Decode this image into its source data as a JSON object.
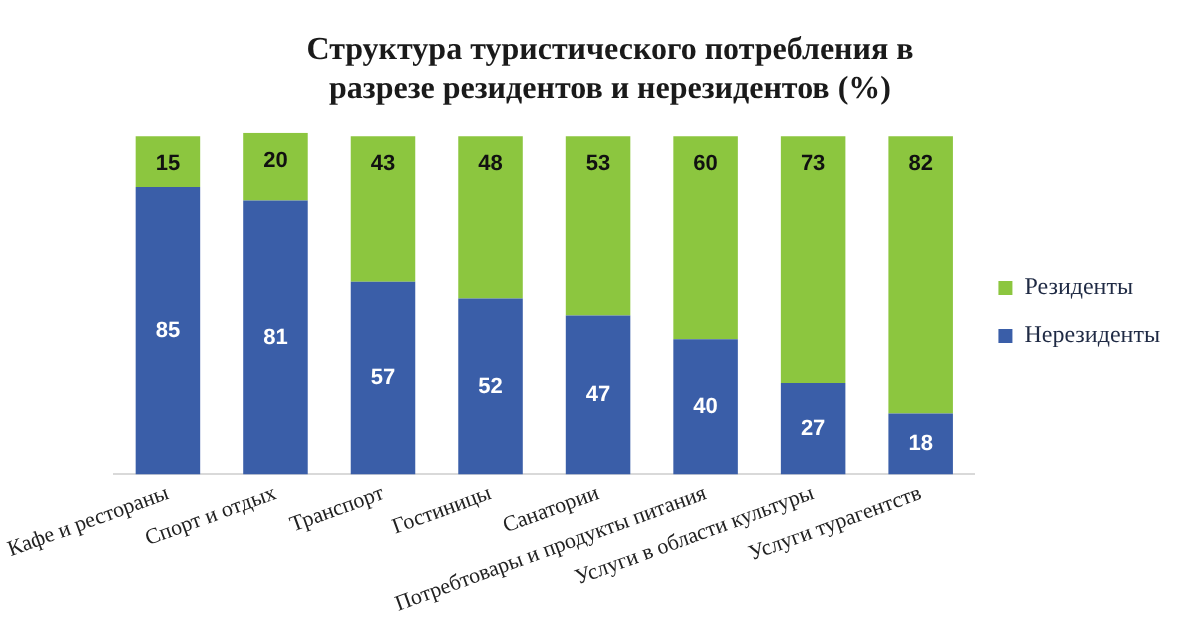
{
  "chart_data": {
    "type": "bar",
    "title": "Структура туристического потребления в разрезе резидентов и нерезидентов (%)",
    "categories": [
      "Кафе и рестораны",
      "Спорт и отдых",
      "Транспорт",
      "Гостиницы",
      "Санатории",
      "Потребтовары и продукты питания",
      "Услуги в области культуры",
      "Услуги турагентств"
    ],
    "series": [
      {
        "name": "Нерезиденты",
        "color": "#3a5ea8",
        "values": [
          85,
          81,
          57,
          52,
          47,
          40,
          27,
          18
        ]
      },
      {
        "name": "Резиденты",
        "color": "#8cc63f",
        "values": [
          15,
          20,
          43,
          48,
          53,
          60,
          73,
          82
        ]
      }
    ],
    "stacked": true,
    "data_labels": true,
    "legend": "right",
    "grid": false
  }
}
